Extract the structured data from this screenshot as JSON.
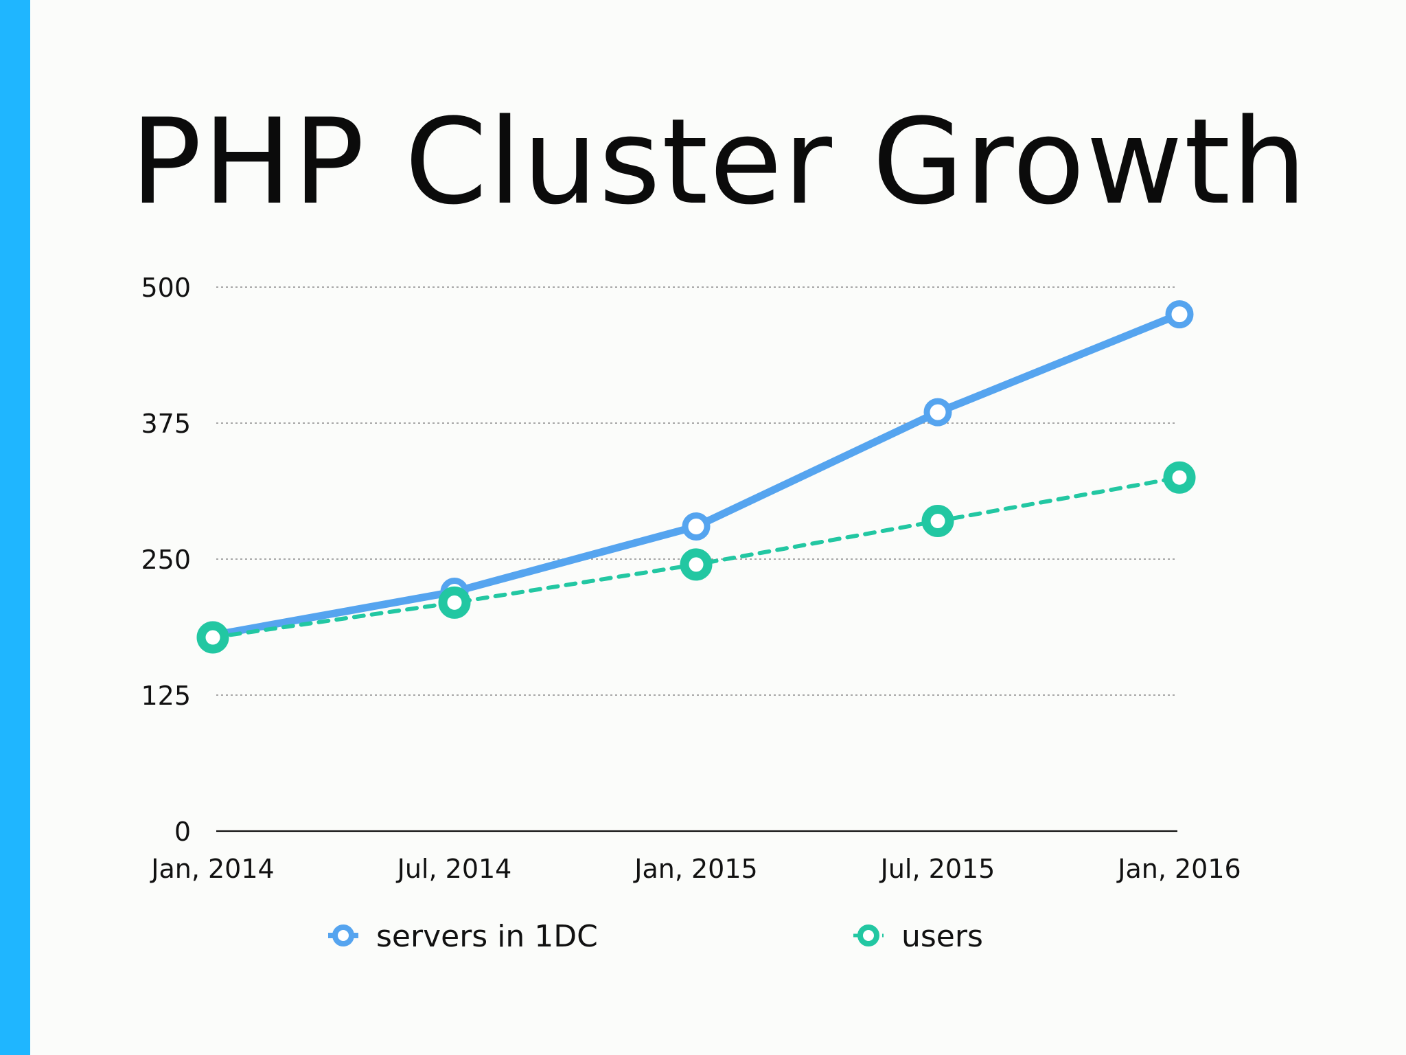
{
  "colors": {
    "accent": "#1fb6ff",
    "servers": "#55a4ef",
    "users": "#22c7a2",
    "grid": "#8a8a8a",
    "axis": "#111111"
  },
  "chart_data": {
    "type": "line",
    "title": "PHP Cluster Growth",
    "xlabel": "",
    "ylabel": "",
    "x": [
      "Jan, 2014",
      "Jul, 2014",
      "Jan, 2015",
      "Jul, 2015",
      "Jan, 2016"
    ],
    "ylim": [
      0,
      500
    ],
    "yticks": [
      0,
      125,
      250,
      375,
      500
    ],
    "grid": true,
    "legend_position": "bottom",
    "series": [
      {
        "name": "servers in 1DC",
        "values": [
          180,
          220,
          280,
          385,
          475
        ],
        "style": "solid",
        "color": "#55a4ef"
      },
      {
        "name": "users",
        "values": [
          178,
          210,
          245,
          285,
          325
        ],
        "style": "dashed",
        "color": "#22c7a2"
      }
    ]
  }
}
